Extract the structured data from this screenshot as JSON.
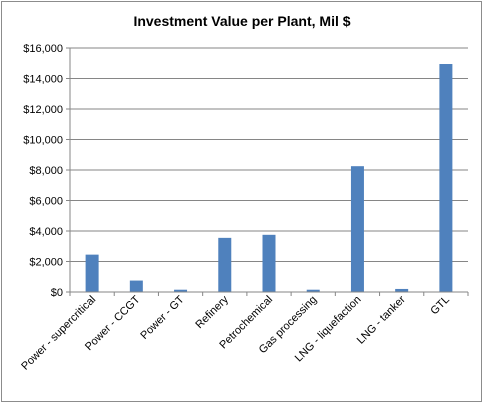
{
  "chart_data": {
    "type": "bar",
    "title": "Investment Value per Plant, Mil $",
    "xlabel": "",
    "ylabel": "",
    "categories": [
      "Power - supercritical",
      "Power - CCGT",
      "Power - GT",
      "Refinery",
      "Petrochemical",
      "Gas processing",
      "LNG - liquefaction",
      "LNG - tanker",
      "GTL"
    ],
    "values": [
      2450,
      750,
      150,
      3550,
      3750,
      150,
      8250,
      200,
      14950
    ],
    "ylim": [
      0,
      16000
    ],
    "yticks": [
      0,
      2000,
      4000,
      6000,
      8000,
      10000,
      12000,
      14000,
      16000
    ],
    "ytick_labels": [
      "$0",
      "$2,000",
      "$4,000",
      "$6,000",
      "$8,000",
      "$10,000",
      "$12,000",
      "$14,000",
      "$16,000"
    ],
    "grid": true,
    "legend": "none",
    "bar_color": "#4f81bd",
    "grid_color": "#868686"
  }
}
